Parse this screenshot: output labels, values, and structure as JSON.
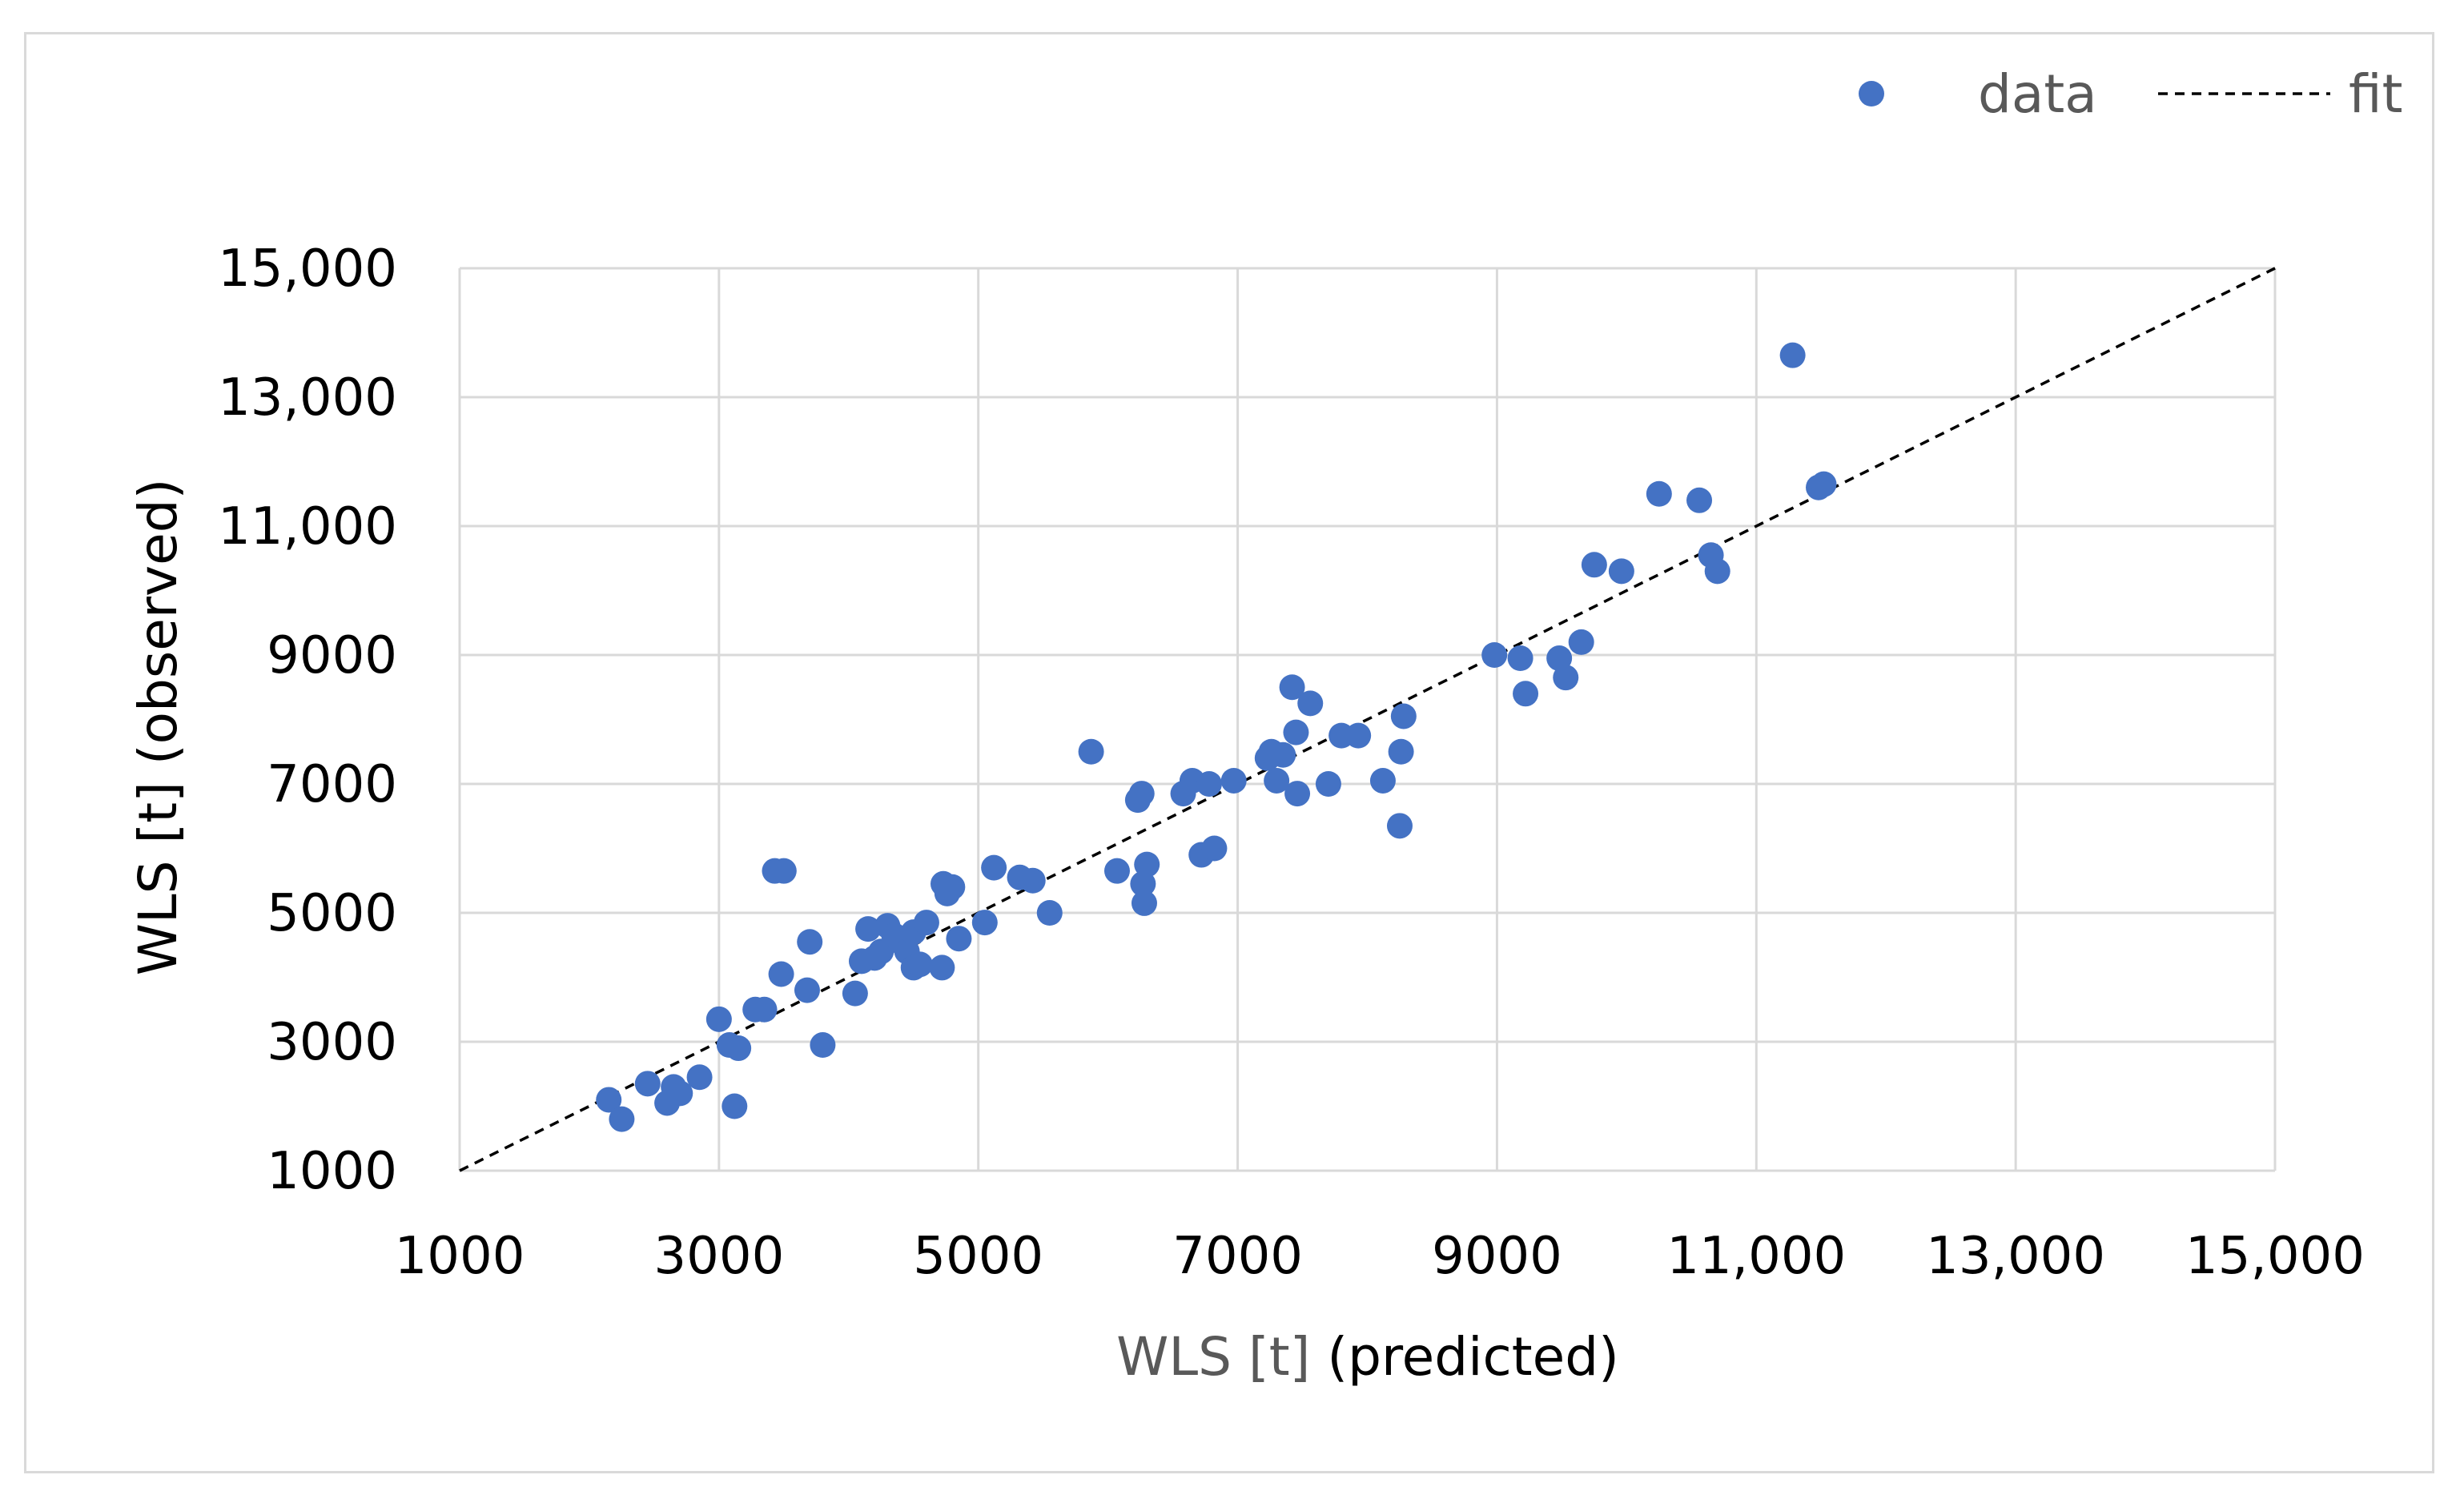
{
  "chart_data": {
    "type": "scatter",
    "xlabel_parts": [
      "WLS [t] ",
      "(predicted)"
    ],
    "ylabel": "WLS [t] (observed)",
    "xlim": [
      1000,
      15000
    ],
    "ylim": [
      1000,
      15000
    ],
    "x_ticks": [
      1000,
      3000,
      5000,
      7000,
      9000,
      11000,
      13000,
      15000
    ],
    "y_ticks": [
      1000,
      3000,
      5000,
      7000,
      9000,
      11000,
      13000,
      15000
    ],
    "x_tick_labels": [
      "1000",
      "3000",
      "5000",
      "7000",
      "9000",
      "11,000",
      "13,000",
      "15,000"
    ],
    "y_tick_labels": [
      "1000",
      "3000",
      "5000",
      "7000",
      "9000",
      "11,000",
      "13,000",
      "15,000"
    ],
    "grid": true,
    "legend": {
      "position": "top-right",
      "entries": [
        {
          "label": "data",
          "marker": "circle"
        },
        {
          "label": "fit",
          "marker": "dashed-line"
        }
      ]
    },
    "colors": {
      "data": "#4472c4",
      "fit": "#000000",
      "grid": "#d9d9d9",
      "xlabel_gray": "#595959",
      "xlabel_dark": "#000000"
    },
    "fit": {
      "x": [
        1000,
        15000
      ],
      "y": [
        1000,
        15000
      ]
    },
    "points": [
      [
        2150,
        2100
      ],
      [
        2250,
        1800
      ],
      [
        2450,
        2350
      ],
      [
        2600,
        2050
      ],
      [
        2650,
        2300
      ],
      [
        2700,
        2200
      ],
      [
        2850,
        2450
      ],
      [
        3000,
        3350
      ],
      [
        3080,
        2950
      ],
      [
        3120,
        2000
      ],
      [
        3150,
        2900
      ],
      [
        3280,
        3500
      ],
      [
        3350,
        3500
      ],
      [
        3430,
        5650
      ],
      [
        3500,
        5650
      ],
      [
        3480,
        4050
      ],
      [
        3680,
        3800
      ],
      [
        3700,
        4550
      ],
      [
        3800,
        2950
      ],
      [
        4050,
        3750
      ],
      [
        4100,
        4250
      ],
      [
        4150,
        4750
      ],
      [
        4200,
        4300
      ],
      [
        4250,
        4400
      ],
      [
        4300,
        4800
      ],
      [
        4350,
        4650
      ],
      [
        4400,
        4550
      ],
      [
        4450,
        4400
      ],
      [
        4500,
        4700
      ],
      [
        4500,
        4150
      ],
      [
        4550,
        4200
      ],
      [
        4600,
        4850
      ],
      [
        4720,
        4150
      ],
      [
        4730,
        5450
      ],
      [
        4760,
        5300
      ],
      [
        4800,
        5400
      ],
      [
        4850,
        4600
      ],
      [
        5050,
        4850
      ],
      [
        5120,
        5700
      ],
      [
        5320,
        5550
      ],
      [
        5420,
        5500
      ],
      [
        5550,
        5000
      ],
      [
        5870,
        7500
      ],
      [
        6070,
        5650
      ],
      [
        6230,
        6750
      ],
      [
        6260,
        6850
      ],
      [
        6270,
        5450
      ],
      [
        6280,
        5150
      ],
      [
        6300,
        5750
      ],
      [
        6580,
        6850
      ],
      [
        6650,
        7050
      ],
      [
        6720,
        5900
      ],
      [
        6780,
        7000
      ],
      [
        6820,
        6000
      ],
      [
        6970,
        7050
      ],
      [
        7230,
        7400
      ],
      [
        7260,
        7500
      ],
      [
        7300,
        7050
      ],
      [
        7350,
        7450
      ],
      [
        7420,
        8500
      ],
      [
        7450,
        7800
      ],
      [
        7460,
        6850
      ],
      [
        7560,
        8250
      ],
      [
        7700,
        7000
      ],
      [
        7800,
        7750
      ],
      [
        7930,
        7750
      ],
      [
        8120,
        7050
      ],
      [
        8250,
        6350
      ],
      [
        8260,
        7500
      ],
      [
        8280,
        8050
      ],
      [
        8980,
        9000
      ],
      [
        9180,
        8950
      ],
      [
        9220,
        8400
      ],
      [
        9480,
        8950
      ],
      [
        9530,
        8650
      ],
      [
        9650,
        9200
      ],
      [
        9750,
        10400
      ],
      [
        9960,
        10300
      ],
      [
        10250,
        11500
      ],
      [
        10560,
        11400
      ],
      [
        10650,
        10550
      ],
      [
        10700,
        10300
      ],
      [
        11280,
        13650
      ],
      [
        11480,
        11600
      ],
      [
        11520,
        11650
      ]
    ]
  }
}
